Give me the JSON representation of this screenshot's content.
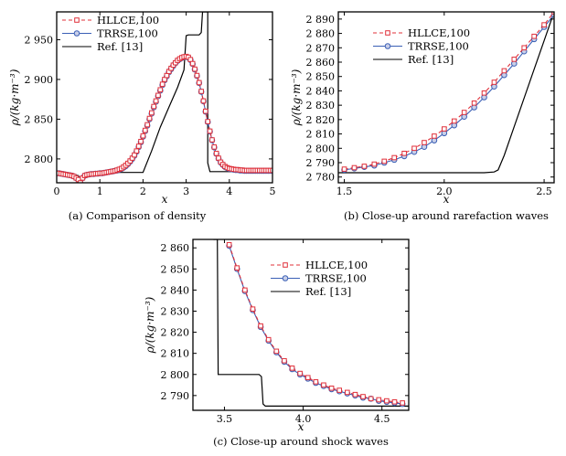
{
  "colors": {
    "hllce": "#e0303a",
    "trrse": "#3a5fb5",
    "ref": "#000000",
    "frame": "#000000"
  },
  "chart_data": [
    {
      "type": "line",
      "caption": "(a) Comparison of density",
      "xlabel": "x",
      "ylabel": "ρ/(kg·m⁻³)",
      "xlim": [
        0,
        5
      ],
      "ylim": [
        2770,
        2985
      ],
      "xticks": [
        0,
        1,
        2,
        3,
        4,
        5
      ],
      "xtick_labels": [
        "0",
        "1",
        "2",
        "3",
        "4",
        "5"
      ],
      "yticks": [
        2800,
        2850,
        2900,
        2950
      ],
      "ytick_labels": [
        "2 800",
        "2 850",
        "2 900",
        "2 950"
      ],
      "legend": [
        "HLLCE,100",
        "TRRSE,100",
        "Ref. [13]"
      ],
      "legend_position": "top-left",
      "series": [
        {
          "name": "HLLCE,100",
          "style": "dashed-square",
          "x": [
            0,
            0.05,
            0.1,
            0.15,
            0.2,
            0.25,
            0.3,
            0.35,
            0.4,
            0.45,
            0.5,
            0.55,
            0.6,
            0.65,
            0.7,
            0.75,
            0.8,
            0.85,
            0.9,
            0.95,
            1.0,
            1.05,
            1.1,
            1.15,
            1.2,
            1.25,
            1.3,
            1.35,
            1.4,
            1.45,
            1.5,
            1.55,
            1.6,
            1.65,
            1.7,
            1.75,
            1.8,
            1.85,
            1.9,
            1.95,
            2.0,
            2.05,
            2.1,
            2.15,
            2.2,
            2.25,
            2.3,
            2.35,
            2.4,
            2.45,
            2.5,
            2.55,
            2.6,
            2.65,
            2.7,
            2.75,
            2.8,
            2.85,
            2.9,
            2.95,
            3.0,
            3.05,
            3.1,
            3.15,
            3.2,
            3.25,
            3.3,
            3.35,
            3.4,
            3.45,
            3.5,
            3.55,
            3.6,
            3.65,
            3.7,
            3.75,
            3.8,
            3.85,
            3.9,
            3.95,
            4.0,
            4.05,
            4.1,
            4.15,
            4.2,
            4.25,
            4.3,
            4.35,
            4.4,
            4.45,
            4.5,
            4.55,
            4.6,
            4.65,
            4.7,
            4.75,
            4.8,
            4.85,
            4.9,
            4.95,
            5.0
          ],
          "y": [
            2782,
            2782,
            2781.5,
            2781,
            2780.5,
            2780,
            2779.5,
            2779,
            2778,
            2776,
            2774,
            2770,
            2776,
            2779,
            2780,
            2780.5,
            2781,
            2781,
            2781.5,
            2781.5,
            2782,
            2782,
            2782.5,
            2783,
            2783.5,
            2784,
            2784.5,
            2785,
            2786,
            2787,
            2788,
            2790,
            2792,
            2794.5,
            2797.5,
            2801,
            2805,
            2810,
            2816,
            2822,
            2829,
            2836,
            2843,
            2851,
            2858,
            2866,
            2873,
            2880,
            2887,
            2894,
            2900,
            2905,
            2910,
            2914,
            2918,
            2921,
            2924,
            2926,
            2927.5,
            2928.5,
            2929,
            2928,
            2925,
            2920,
            2913,
            2905,
            2896,
            2885,
            2873,
            2860,
            2847,
            2835,
            2824,
            2815,
            2807,
            2801,
            2796,
            2793,
            2790.5,
            2789,
            2788,
            2787.5,
            2787,
            2786.5,
            2786.5,
            2786,
            2786,
            2785.5,
            2785.5,
            2785.5,
            2785.5,
            2785.5,
            2785.5,
            2785.5,
            2785.5,
            2785.5,
            2785.5,
            2785.5,
            2785.5,
            2785.5,
            2785.5
          ]
        },
        {
          "name": "TRRSE,100",
          "style": "solid-circle",
          "x": [
            0,
            0.05,
            0.1,
            0.15,
            0.2,
            0.25,
            0.3,
            0.35,
            0.4,
            0.45,
            0.5,
            0.55,
            0.6,
            0.65,
            0.7,
            0.75,
            0.8,
            0.85,
            0.9,
            0.95,
            1.0,
            1.05,
            1.1,
            1.15,
            1.2,
            1.25,
            1.3,
            1.35,
            1.4,
            1.45,
            1.5,
            1.55,
            1.6,
            1.65,
            1.7,
            1.75,
            1.8,
            1.85,
            1.9,
            1.95,
            2.0,
            2.05,
            2.1,
            2.15,
            2.2,
            2.25,
            2.3,
            2.35,
            2.4,
            2.45,
            2.5,
            2.55,
            2.6,
            2.65,
            2.7,
            2.75,
            2.8,
            2.85,
            2.9,
            2.95,
            3.0,
            3.05,
            3.1,
            3.15,
            3.2,
            3.25,
            3.3,
            3.35,
            3.4,
            3.45,
            3.5,
            3.55,
            3.6,
            3.65,
            3.7,
            3.75,
            3.8,
            3.85,
            3.9,
            3.95,
            4.0,
            4.05,
            4.1,
            4.15,
            4.2,
            4.25,
            4.3,
            4.35,
            4.4,
            4.45,
            4.5,
            4.55,
            4.6,
            4.65,
            4.7,
            4.75,
            4.8,
            4.85,
            4.9,
            4.95,
            5.0
          ],
          "y": [
            2782,
            2782,
            2781.5,
            2781,
            2780.5,
            2780,
            2779.5,
            2779,
            2778,
            2776,
            2774,
            2770,
            2776,
            2779,
            2780,
            2780.5,
            2781,
            2781,
            2781.5,
            2781.5,
            2782,
            2782,
            2782.5,
            2783,
            2783.5,
            2784,
            2784.5,
            2785,
            2785.5,
            2786.5,
            2787.5,
            2789,
            2791,
            2793.5,
            2796.5,
            2800,
            2804,
            2809,
            2815,
            2821,
            2828,
            2835,
            2842,
            2850,
            2857,
            2865,
            2872,
            2879,
            2886,
            2893,
            2899,
            2904,
            2909,
            2913,
            2917,
            2920.5,
            2923.5,
            2925.5,
            2927,
            2928,
            2928.5,
            2927.5,
            2924.5,
            2919.5,
            2912.5,
            2904.5,
            2895.5,
            2884.5,
            2872.5,
            2859.5,
            2846.5,
            2834.5,
            2823.5,
            2814.5,
            2806.5,
            2800.5,
            2795.5,
            2792.5,
            2790,
            2788.5,
            2787.5,
            2787,
            2786.5,
            2786,
            2786,
            2785.5,
            2785.5,
            2785,
            2785,
            2785,
            2785,
            2785,
            2785,
            2785,
            2785,
            2785,
            2785,
            2785,
            2785,
            2785,
            2785
          ]
        },
        {
          "name": "Ref. [13]",
          "style": "solid",
          "x": [
            0,
            0.4,
            0.5,
            0.55,
            0.55,
            0.6,
            0.65,
            0.7,
            1.0,
            1.5,
            1.8,
            1.85,
            1.9,
            2.0,
            2.2,
            2.4,
            2.6,
            2.8,
            2.95,
            3.0,
            3.05,
            3.3,
            3.35,
            3.38,
            3.4,
            3.45,
            3.5,
            3.5,
            3.55,
            4.0,
            4.5,
            5.0
          ],
          "y": [
            2780,
            2780,
            2779,
            2775,
            2770,
            2778,
            2781,
            2783,
            2783,
            2783,
            2783,
            2783,
            2783,
            2783,
            2810,
            2840,
            2865,
            2890,
            2912,
            2955,
            2956,
            2956,
            2959,
            2985,
            2985,
            2985,
            2985,
            2795,
            2784,
            2784,
            2784,
            2784
          ]
        }
      ]
    },
    {
      "type": "line",
      "caption": "(b) Close-up around rarefaction waves",
      "xlabel": "x",
      "ylabel": "ρ/(kg·m⁻³)",
      "xlim": [
        1.47,
        2.55
      ],
      "ylim": [
        2776,
        2895
      ],
      "xticks": [
        1.5,
        2.0,
        2.5
      ],
      "xtick_labels": [
        "1.5",
        "2.0",
        "2.5"
      ],
      "yticks": [
        2780,
        2790,
        2800,
        2810,
        2820,
        2830,
        2840,
        2850,
        2860,
        2870,
        2880,
        2890
      ],
      "ytick_labels": [
        "2 780",
        "2 790",
        "2 800",
        "2 810",
        "2 820",
        "2 830",
        "2 840",
        "2 850",
        "2 860",
        "2 870",
        "2 880",
        "2 890"
      ],
      "legend": [
        "HLLCE,100",
        "TRRSE,100",
        "Ref. [13]"
      ],
      "legend_position": "top-left",
      "series": [
        {
          "name": "HLLCE,100",
          "style": "dashed-square",
          "x": [
            1.5,
            1.55,
            1.6,
            1.65,
            1.7,
            1.75,
            1.8,
            1.85,
            1.9,
            1.95,
            2.0,
            2.05,
            2.1,
            2.15,
            2.2,
            2.25,
            2.3,
            2.35,
            2.4,
            2.45,
            2.5,
            2.55
          ],
          "y": [
            2785.5,
            2786.5,
            2787.5,
            2789,
            2791,
            2793.5,
            2796.5,
            2800,
            2804,
            2808.5,
            2813.5,
            2819,
            2825,
            2831.5,
            2838.5,
            2846,
            2854,
            2862,
            2870,
            2878,
            2886,
            2895
          ]
        },
        {
          "name": "TRRSE,100",
          "style": "solid-circle",
          "x": [
            1.5,
            1.55,
            1.6,
            1.65,
            1.7,
            1.75,
            1.8,
            1.85,
            1.9,
            1.95,
            2.0,
            2.05,
            2.1,
            2.15,
            2.2,
            2.25,
            2.3,
            2.35,
            2.4,
            2.45,
            2.5,
            2.55
          ],
          "y": [
            2785,
            2786,
            2787,
            2788,
            2790,
            2792,
            2794.5,
            2797.5,
            2801,
            2805.5,
            2810.5,
            2816,
            2822,
            2828.5,
            2835.5,
            2843,
            2851,
            2859,
            2867.5,
            2876,
            2884.5,
            2893
          ]
        },
        {
          "name": "Ref. [13]",
          "style": "solid",
          "x": [
            1.47,
            2.2,
            2.25,
            2.27,
            2.3,
            2.35,
            2.4,
            2.45,
            2.5,
            2.55
          ],
          "y": [
            2783,
            2783,
            2783.5,
            2785,
            2795,
            2815,
            2835,
            2855,
            2875,
            2895
          ]
        }
      ]
    },
    {
      "type": "line",
      "caption": "(c) Close-up around shock waves",
      "xlabel": "x",
      "ylabel": "ρ/(kg·m⁻³)",
      "xlim": [
        3.3,
        4.67
      ],
      "ylim": [
        2783,
        2864
      ],
      "xticks": [
        3.5,
        4.0,
        4.5
      ],
      "xtick_labels": [
        "3.5",
        "4.0",
        "4.5"
      ],
      "yticks": [
        2790,
        2800,
        2810,
        2820,
        2830,
        2840,
        2850,
        2860
      ],
      "ytick_labels": [
        "2 790",
        "2 800",
        "2 810",
        "2 820",
        "2 830",
        "2 840",
        "2 850",
        "2 860"
      ],
      "legend": [
        "HLLCE,100",
        "TRRSE,100",
        "Ref. [13]"
      ],
      "legend_position": "top-right",
      "series": [
        {
          "name": "HLLCE,100",
          "style": "dashed-square",
          "x": [
            3.53,
            3.58,
            3.63,
            3.68,
            3.73,
            3.78,
            3.83,
            3.88,
            3.93,
            3.98,
            4.03,
            4.08,
            4.13,
            4.18,
            4.23,
            4.28,
            4.33,
            4.38,
            4.43,
            4.48,
            4.53,
            4.58,
            4.63
          ],
          "y": [
            2861.5,
            2850.5,
            2840,
            2831,
            2823,
            2816.5,
            2811,
            2806.5,
            2803,
            2800.5,
            2798.5,
            2796.5,
            2795,
            2793.5,
            2792.5,
            2791.5,
            2790.5,
            2789.5,
            2788.5,
            2788,
            2787.5,
            2787,
            2786.5
          ]
        },
        {
          "name": "TRRSE,100",
          "style": "solid-circle",
          "x": [
            3.53,
            3.58,
            3.63,
            3.68,
            3.73,
            3.78,
            3.83,
            3.88,
            3.93,
            3.98,
            4.03,
            4.08,
            4.13,
            4.18,
            4.23,
            4.28,
            4.33,
            4.38,
            4.43,
            4.48,
            4.53,
            4.58,
            4.63
          ],
          "y": [
            2861,
            2850,
            2839.5,
            2830.5,
            2822.5,
            2816,
            2810.5,
            2806,
            2802.5,
            2800,
            2798,
            2796,
            2794.5,
            2793,
            2792,
            2791,
            2790,
            2789,
            2788.5,
            2787.5,
            2787,
            2786.5,
            2786
          ]
        },
        {
          "name": "Ref. [13]",
          "style": "solid",
          "x": [
            3.43,
            3.455,
            3.46,
            3.72,
            3.735,
            3.745,
            3.76,
            4.67
          ],
          "y": [
            2864,
            2864,
            2800,
            2800,
            2799,
            2786,
            2785,
            2785
          ]
        }
      ]
    }
  ]
}
